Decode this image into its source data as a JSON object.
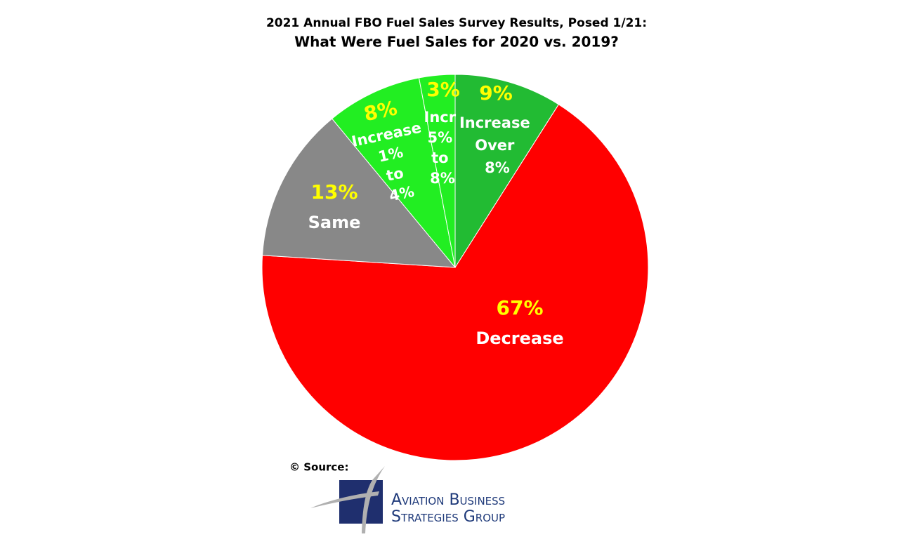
{
  "chart_data": {
    "type": "pie",
    "title": "2021 Annual FBO Fuel Sales Survey Results, Posed 1/21:",
    "subtitle": "What Were Fuel Sales for 2020 vs. 2019?",
    "categories": [
      "Increase Over 8%",
      "Decrease",
      "Same",
      "Increase 1% to 4%",
      "Incr 5% to 8%"
    ],
    "values": [
      9,
      67,
      13,
      8,
      3
    ],
    "value_labels": [
      "9%",
      "67%",
      "13%",
      "8%",
      "3%"
    ],
    "colors": [
      "#22bb33",
      "#ff0000",
      "#888888",
      "#22ee22",
      "#22ee22"
    ],
    "source": "© Source:",
    "logo": [
      "Aviation Business",
      "Strategies Group"
    ]
  }
}
